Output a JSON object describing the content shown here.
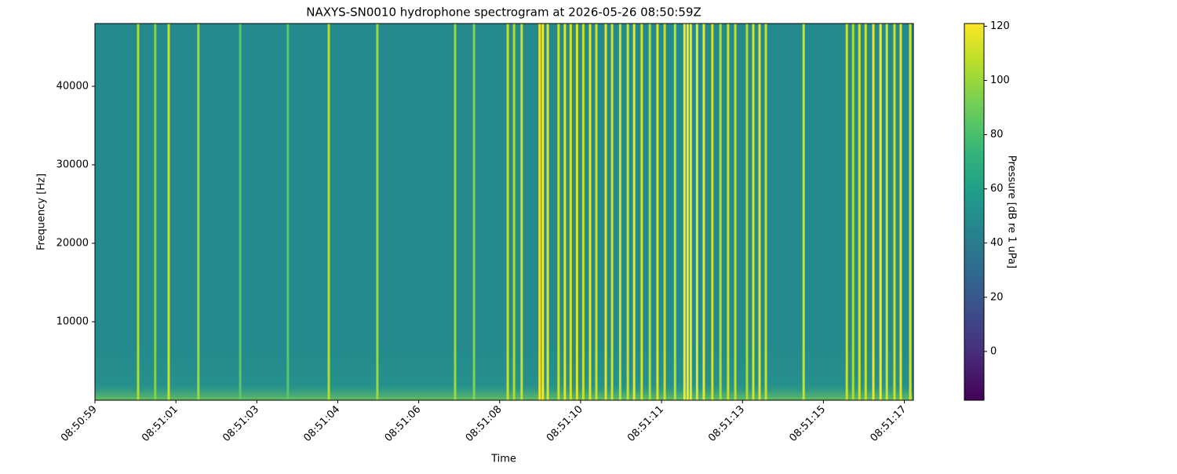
{
  "chart_data": {
    "type": "spectrogram",
    "title": "NAXYS-SN0010 hydrophone spectrogram at 2026-05-26 08:50:59Z",
    "x_label": "Time",
    "y_label": "Frequency [Hz]",
    "colorbar_label": "Pressure [dB re 1 uPa]",
    "colormap": "viridis",
    "background_level": 48,
    "x": [
      0.96,
      1.34,
      1.64,
      2.3,
      3.23,
      4.29,
      5.2,
      6.28,
      8.01,
      8.43,
      9.18,
      9.32,
      9.49,
      9.89,
      9.96,
      10.07,
      10.31,
      10.45,
      10.58,
      10.72,
      10.86,
      11.01,
      11.15,
      11.36,
      11.5,
      11.68,
      11.85,
      11.99,
      12.16,
      12.34,
      12.51,
      12.67,
      12.9,
      13.11,
      13.18,
      13.25,
      13.39,
      13.54,
      13.73,
      13.91,
      14.08,
      14.24,
      14.5,
      14.64,
      14.78,
      14.92,
      15.76,
      16.72,
      16.86,
      17.0,
      17.14,
      17.31,
      17.47,
      17.61,
      17.78,
      17.92,
      18.13
    ],
    "values": [
      105,
      95,
      110,
      100,
      85,
      85,
      105,
      100,
      100,
      95,
      110,
      105,
      110,
      120,
      120,
      115,
      110,
      115,
      112,
      115,
      110,
      115,
      110,
      115,
      112,
      110,
      110,
      118,
      112,
      105,
      115,
      110,
      108,
      120,
      120,
      118,
      115,
      118,
      112,
      105,
      110,
      108,
      105,
      112,
      115,
      110,
      110,
      110,
      105,
      112,
      110,
      118,
      120,
      112,
      110,
      115,
      112
    ],
    "xlim": [
      0,
      18.2
    ],
    "ylim": [
      0,
      48000
    ],
    "xticks": [
      {
        "value": 0,
        "label": "08:50:59"
      },
      {
        "value": 1.8,
        "label": "08:51:01"
      },
      {
        "value": 3.6,
        "label": "08:51:03"
      },
      {
        "value": 5.4,
        "label": "08:51:04"
      },
      {
        "value": 7.2,
        "label": "08:51:06"
      },
      {
        "value": 9.0,
        "label": "08:51:08"
      },
      {
        "value": 10.8,
        "label": "08:51:10"
      },
      {
        "value": 12.6,
        "label": "08:51:11"
      },
      {
        "value": 14.4,
        "label": "08:51:13"
      },
      {
        "value": 16.2,
        "label": "08:51:15"
      },
      {
        "value": 18.0,
        "label": "08:51:17"
      }
    ],
    "yticks": [
      10000,
      20000,
      30000,
      40000
    ],
    "clim": [
      -18,
      121
    ],
    "cticks": [
      0,
      20,
      40,
      60,
      80,
      100,
      120
    ]
  }
}
